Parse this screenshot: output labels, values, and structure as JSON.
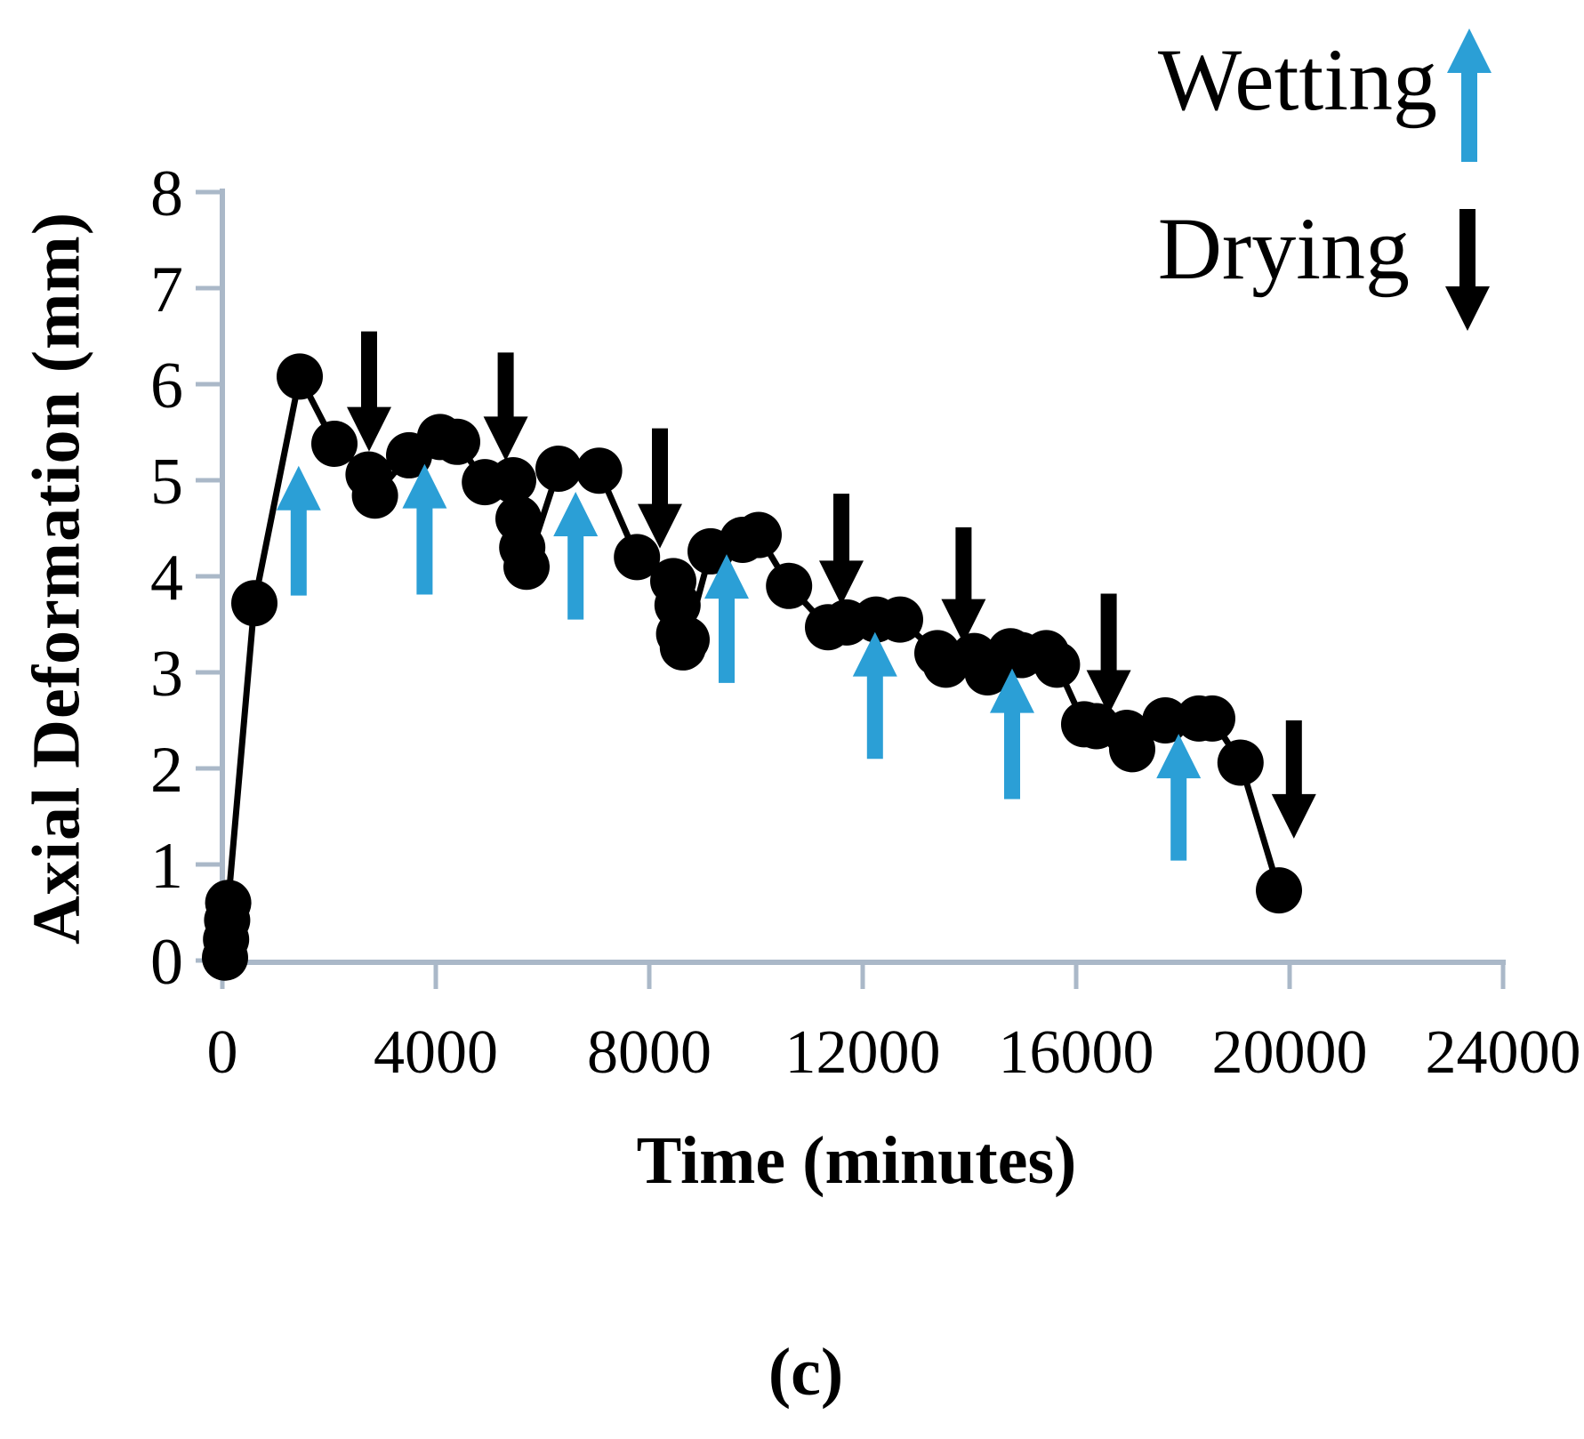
{
  "figure": {
    "caption": "(c)"
  },
  "legend": {
    "items": [
      {
        "label": "Wetting",
        "direction": "up",
        "color": "#2B9FD6"
      },
      {
        "label": "Drying",
        "direction": "down",
        "color": "#000000"
      }
    ]
  },
  "chart_data": {
    "type": "scatter",
    "title": "",
    "xlabel": "Time (minutes)",
    "ylabel": "Axial Deformation (mm)",
    "xlim": [
      0,
      24000
    ],
    "ylim": [
      0,
      8
    ],
    "x_ticks": [
      0,
      4000,
      8000,
      12000,
      16000,
      20000,
      24000
    ],
    "y_ticks": [
      0,
      1,
      2,
      3,
      4,
      5,
      6,
      7,
      8
    ],
    "grid": false,
    "legend_position": "top-right",
    "colors": {
      "wetting": "#2B9FD6",
      "drying": "#000000",
      "axis": "#AAB8C8",
      "series": "#000000"
    },
    "series": [
      {
        "name": "Axial deformation",
        "color": "#000000",
        "marker": "circle",
        "points": [
          [
            50,
            0.03
          ],
          [
            70,
            0.22
          ],
          [
            90,
            0.42
          ],
          [
            110,
            0.6
          ],
          [
            600,
            3.72
          ],
          [
            1450,
            6.08
          ],
          [
            2100,
            5.38
          ],
          [
            2740,
            5.06
          ],
          [
            2860,
            4.84
          ],
          [
            3500,
            5.26
          ],
          [
            4080,
            5.45
          ],
          [
            4400,
            5.4
          ],
          [
            4920,
            4.98
          ],
          [
            5450,
            5.0
          ],
          [
            5550,
            4.6
          ],
          [
            5620,
            4.3
          ],
          [
            5700,
            4.1
          ],
          [
            6300,
            5.12
          ],
          [
            7060,
            5.1
          ],
          [
            7770,
            4.2
          ],
          [
            8450,
            3.95
          ],
          [
            8530,
            3.7
          ],
          [
            8560,
            3.4
          ],
          [
            8630,
            3.26
          ],
          [
            8700,
            3.34
          ],
          [
            9150,
            4.26
          ],
          [
            9750,
            4.38
          ],
          [
            10050,
            4.43
          ],
          [
            10620,
            3.9
          ],
          [
            11350,
            3.47
          ],
          [
            11700,
            3.52
          ],
          [
            12250,
            3.55
          ],
          [
            12700,
            3.55
          ],
          [
            13400,
            3.2
          ],
          [
            13560,
            3.08
          ],
          [
            14090,
            3.17
          ],
          [
            14340,
            3.0
          ],
          [
            14770,
            3.22
          ],
          [
            14970,
            3.18
          ],
          [
            15440,
            3.2
          ],
          [
            15640,
            3.08
          ],
          [
            16150,
            2.46
          ],
          [
            16380,
            2.44
          ],
          [
            16950,
            2.37
          ],
          [
            17050,
            2.2
          ],
          [
            17670,
            2.5
          ],
          [
            18300,
            2.52
          ],
          [
            18550,
            2.52
          ],
          [
            19080,
            2.06
          ],
          [
            19800,
            0.73
          ]
        ]
      }
    ],
    "annotations": {
      "wetting_arrows": [
        {
          "t": 1430,
          "from_mm": 3.8,
          "to_mm": 5.15
        },
        {
          "t": 3790,
          "from_mm": 3.81,
          "to_mm": 5.17
        },
        {
          "t": 6620,
          "from_mm": 3.55,
          "to_mm": 4.88
        },
        {
          "t": 9450,
          "from_mm": 2.89,
          "to_mm": 4.23
        },
        {
          "t": 12230,
          "from_mm": 2.1,
          "to_mm": 3.42
        },
        {
          "t": 14800,
          "from_mm": 1.68,
          "to_mm": 3.04
        },
        {
          "t": 17920,
          "from_mm": 1.04,
          "to_mm": 2.36
        }
      ],
      "drying_arrows": [
        {
          "t": 2750,
          "from_mm": 6.55,
          "to_mm": 5.3
        },
        {
          "t": 5310,
          "from_mm": 6.33,
          "to_mm": 5.2
        },
        {
          "t": 8200,
          "from_mm": 5.54,
          "to_mm": 4.29
        },
        {
          "t": 11600,
          "from_mm": 4.86,
          "to_mm": 3.7
        },
        {
          "t": 13890,
          "from_mm": 4.51,
          "to_mm": 3.3
        },
        {
          "t": 16610,
          "from_mm": 3.82,
          "to_mm": 2.56
        },
        {
          "t": 20080,
          "from_mm": 2.5,
          "to_mm": 1.27
        }
      ]
    }
  }
}
